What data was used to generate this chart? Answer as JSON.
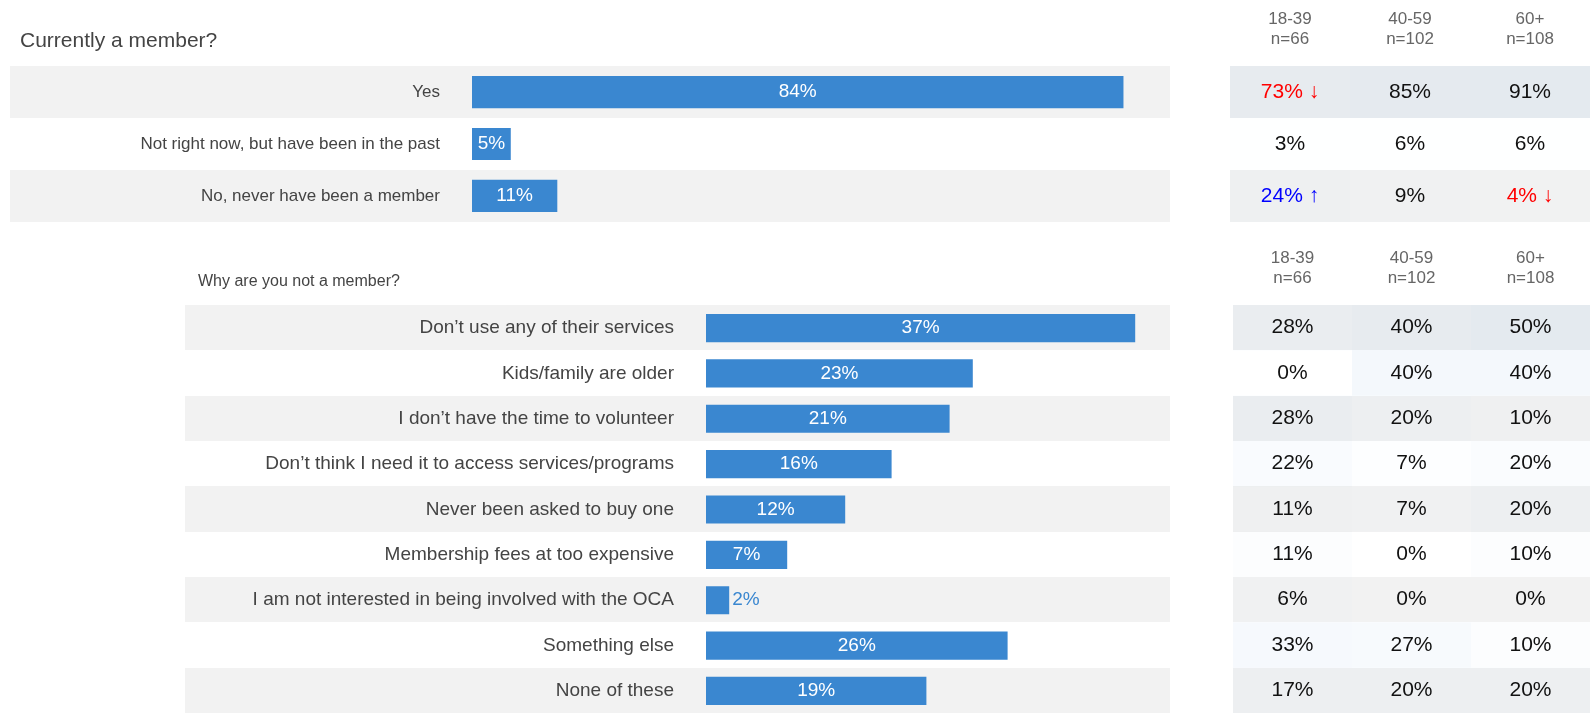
{
  "chart_data": [
    {
      "type": "bar",
      "orientation": "horizontal",
      "title": "Currently a member?",
      "tick_labels": "y",
      "categories": [
        "Yes",
        "Not right now, but have been in the past",
        "No, never have been a member"
      ],
      "values": [
        84,
        5,
        11
      ],
      "value_labels": [
        "84%",
        "5%",
        "11%"
      ],
      "color": "#3a87d0"
    },
    {
      "type": "heatmap",
      "tick_labels": "x",
      "categories": [
        "18-39\nn=66",
        "40-59\nn=102",
        "60+\nn=108"
      ],
      "y_categories": [
        null,
        null,
        null
      ],
      "cells": [
        [
          73,
          85,
          91
        ],
        [
          3,
          6,
          6
        ],
        [
          24,
          9,
          4
        ]
      ],
      "cell_labels": [
        [
          "73% ↓",
          "85%",
          "91%"
        ],
        [
          "3%",
          "6%",
          "6%"
        ],
        [
          "24% ↑",
          "9%",
          "4% ↓"
        ]
      ],
      "colors": [
        [
          "#ff0000",
          "#111111",
          "#111111"
        ],
        [
          "#111111",
          "#111111",
          "#111111"
        ],
        [
          "#0000ff",
          "#111111",
          "#ff0000"
        ]
      ]
    },
    {
      "type": "bar",
      "orientation": "horizontal",
      "title": "Why are you not a member?",
      "tick_labels": "y",
      "categories": [
        "Don’t use any of their services",
        "Kids/family are older",
        "I don’t have the time to volunteer",
        "Don’t think I need it to access services/programs",
        "Never been asked to buy one",
        "Membership fees at too expensive",
        "I am not interested in being involved with the OCA",
        "Something else",
        "None of these"
      ],
      "values": [
        37,
        23,
        21,
        16,
        12,
        7,
        2,
        26,
        19
      ],
      "value_labels": [
        "37%",
        "23%",
        "21%",
        "16%",
        "12%",
        "7%",
        "2%",
        "26%",
        "19%"
      ],
      "color": "#3a87d0"
    },
    {
      "type": "heatmap",
      "tick_labels": "x",
      "categories": [
        "18-39\nn=66",
        "40-59\nn=102",
        "60+\nn=108"
      ],
      "y_categories": [
        null,
        null,
        null,
        null,
        null,
        null,
        null,
        null,
        null
      ],
      "cells": [
        [
          28,
          40,
          50
        ],
        [
          0,
          40,
          40
        ],
        [
          28,
          20,
          10
        ],
        [
          22,
          7,
          20
        ],
        [
          11,
          7,
          20
        ],
        [
          11,
          0,
          10
        ],
        [
          6,
          0,
          0
        ],
        [
          33,
          27,
          10
        ],
        [
          17,
          20,
          20
        ]
      ],
      "cell_labels": [
        [
          "28%",
          "40%",
          "50%"
        ],
        [
          "0%",
          "40%",
          "40%"
        ],
        [
          "28%",
          "20%",
          "10%"
        ],
        [
          "22%",
          "7%",
          "20%"
        ],
        [
          "11%",
          "7%",
          "20%"
        ],
        [
          "11%",
          "0%",
          "10%"
        ],
        [
          "6%",
          "0%",
          "0%"
        ],
        [
          "33%",
          "27%",
          "10%"
        ],
        [
          "17%",
          "20%",
          "20%"
        ]
      ]
    }
  ]
}
